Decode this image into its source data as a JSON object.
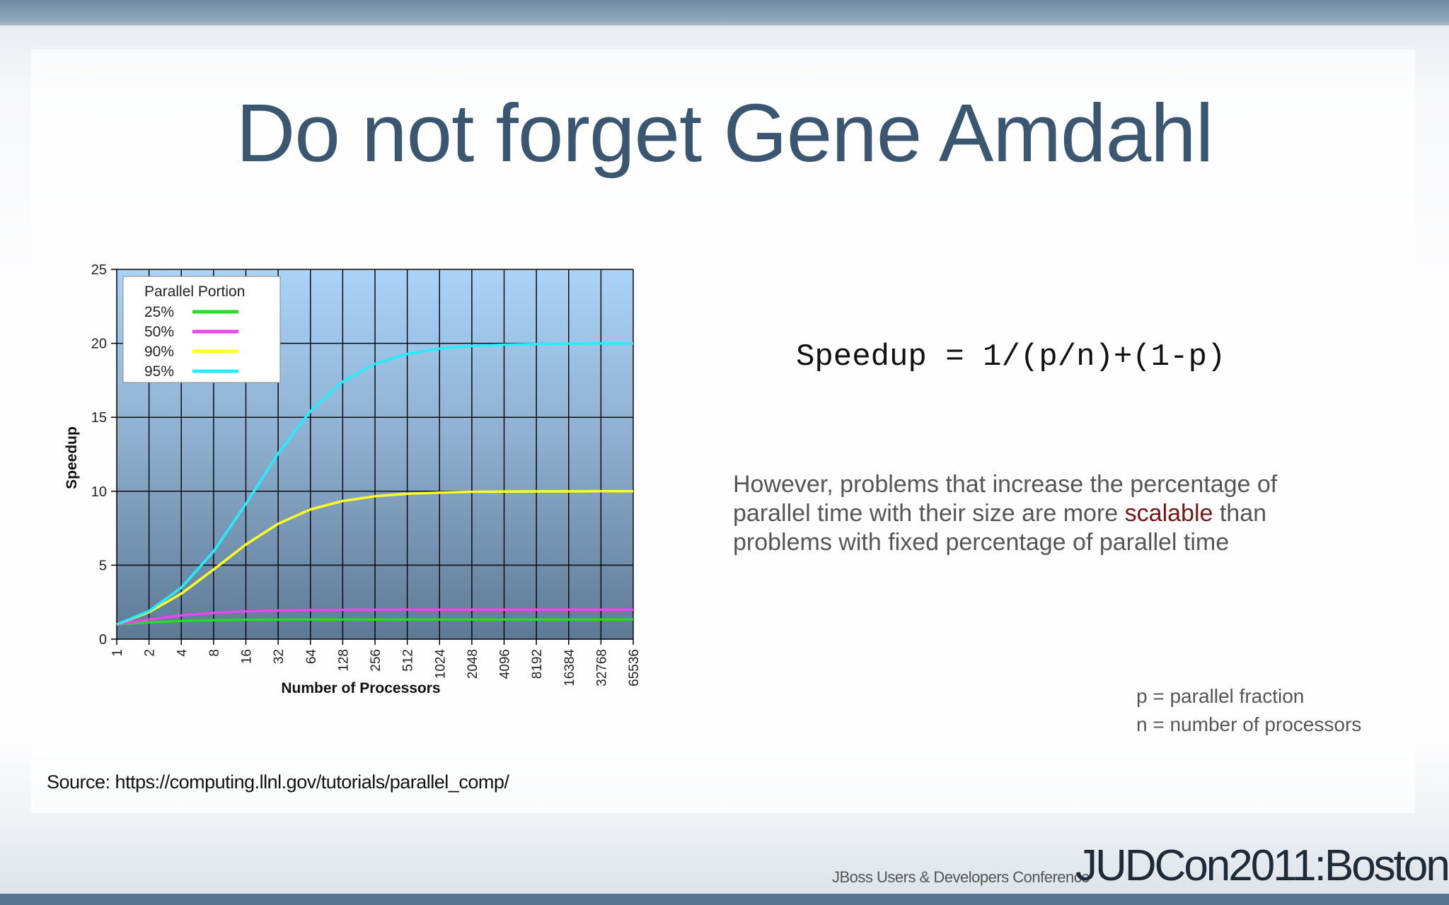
{
  "slide": {
    "title": "Do not forget Gene Amdahl",
    "formula": "Speedup = 1/(p/n)+(1-p)",
    "paragraph_before": "However, problems that increase the percentage of parallel time with their size are more ",
    "paragraph_highlight": "scalable",
    "paragraph_after": " than problems with fixed percentage of parallel time",
    "def_p": "p = parallel fraction",
    "def_n": "n = number of processors",
    "source": "Source: https://computing.llnl.gov/tutorials/parallel_comp/",
    "footer_small": "JBoss Users & Developers Conference",
    "footer_brand": "JUDCon2011:Boston"
  },
  "chart_data": {
    "type": "line",
    "xlabel": "Number of Processors",
    "ylabel": "Speedup",
    "ylim": [
      0,
      25
    ],
    "yticks": [
      0,
      5,
      10,
      15,
      20,
      25
    ],
    "x": [
      "1",
      "2",
      "4",
      "8",
      "16",
      "32",
      "64",
      "128",
      "256",
      "512",
      "1024",
      "2048",
      "4096",
      "8192",
      "16384",
      "32768",
      "65536"
    ],
    "legend_title": "Parallel Portion",
    "legend_position": "top-left",
    "grid": true,
    "series": [
      {
        "name": "25%",
        "color": "#22dd22",
        "values": [
          1.0,
          1.14,
          1.23,
          1.28,
          1.31,
          1.32,
          1.33,
          1.33,
          1.33,
          1.33,
          1.33,
          1.33,
          1.33,
          1.33,
          1.33,
          1.33,
          1.33
        ]
      },
      {
        "name": "50%",
        "color": "#ee44ee",
        "values": [
          1.0,
          1.33,
          1.6,
          1.78,
          1.88,
          1.94,
          1.97,
          1.98,
          1.99,
          2.0,
          2.0,
          2.0,
          2.0,
          2.0,
          2.0,
          2.0,
          2.0
        ]
      },
      {
        "name": "90%",
        "color": "#ffff22",
        "values": [
          1.0,
          1.82,
          3.08,
          4.71,
          6.4,
          7.8,
          8.77,
          9.34,
          9.66,
          9.83,
          9.91,
          9.96,
          9.98,
          9.99,
          9.99,
          10.0,
          10.0
        ]
      },
      {
        "name": "95%",
        "color": "#22eeff",
        "values": [
          1.0,
          1.9,
          3.48,
          5.93,
          9.14,
          12.55,
          15.42,
          17.41,
          18.62,
          19.28,
          19.64,
          19.82,
          19.91,
          19.95,
          19.98,
          19.99,
          19.99
        ]
      }
    ]
  }
}
